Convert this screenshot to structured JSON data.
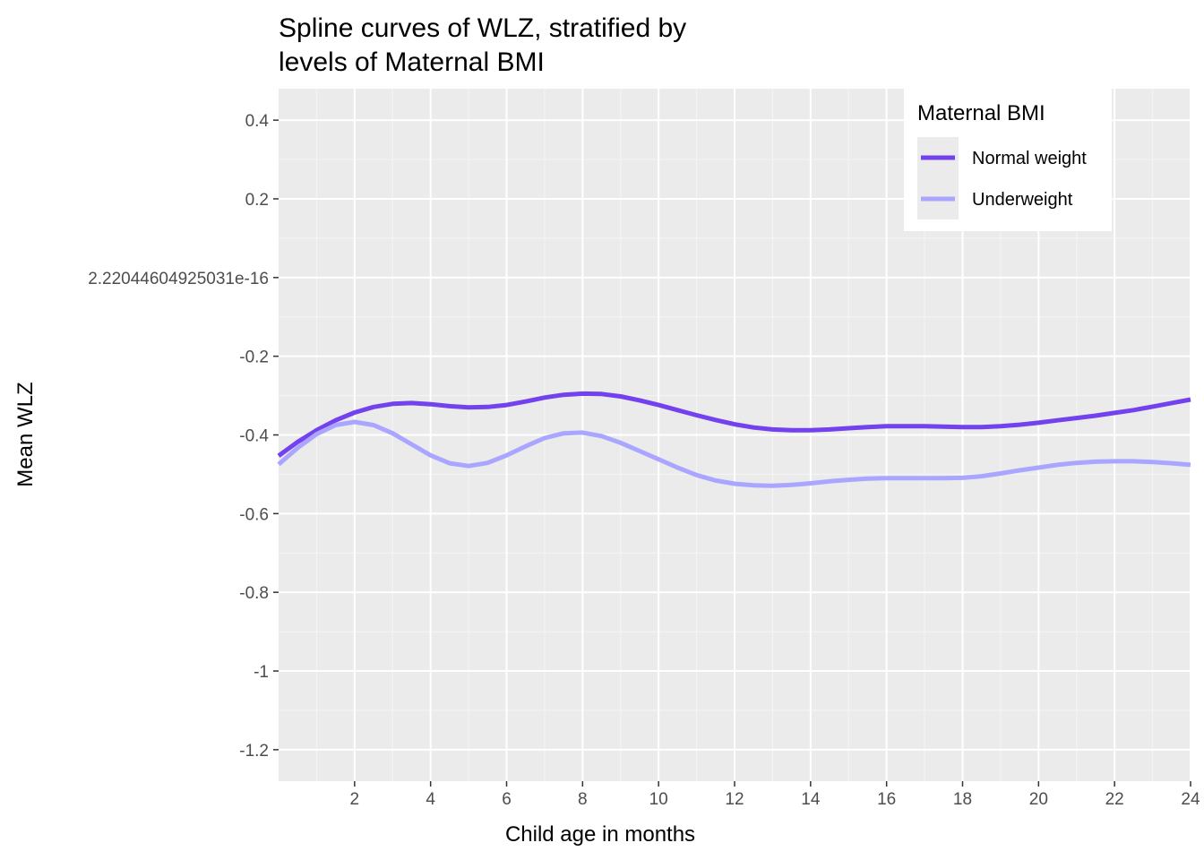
{
  "chart_data": {
    "type": "line",
    "title_lines": [
      "Spline curves of WLZ, stratified by",
      "levels of Maternal BMI"
    ],
    "xlabel": "Child age in months",
    "ylabel": "Mean WLZ",
    "xlim": [
      0,
      24
    ],
    "ylim": [
      -1.28,
      0.48
    ],
    "x_ticks": [
      2,
      4,
      6,
      8,
      10,
      12,
      14,
      16,
      18,
      20,
      22,
      24
    ],
    "x_tick_labels": [
      "2",
      "4",
      "6",
      "8",
      "10",
      "12",
      "14",
      "16",
      "18",
      "20",
      "22",
      "24"
    ],
    "y_ticks": [
      0.4,
      0.2,
      0,
      -0.2,
      -0.4,
      -0.6,
      -0.8,
      -1,
      -1.2
    ],
    "y_tick_labels": [
      "0.4",
      "0.2",
      "2.22044604925031e-16",
      "-0.2",
      "-0.4",
      "-0.6",
      "-0.8",
      "-1",
      "-1.2"
    ],
    "grid": true,
    "legend": {
      "title": "Maternal BMI",
      "position": "top-right"
    },
    "series": [
      {
        "name": "Normal weight",
        "color": "#7342ee",
        "x": [
          0,
          0.5,
          1,
          1.5,
          2,
          2.5,
          3,
          3.5,
          4,
          4.5,
          5,
          5.5,
          6,
          6.5,
          7,
          7.5,
          8,
          8.5,
          9,
          9.5,
          10,
          10.5,
          11,
          11.5,
          12,
          12.5,
          13,
          13.5,
          14,
          14.5,
          15,
          15.5,
          16,
          16.5,
          17,
          17.5,
          18,
          18.5,
          19,
          19.5,
          20,
          20.5,
          21,
          21.5,
          22,
          22.5,
          23,
          23.5,
          24
        ],
        "values": [
          -0.453,
          -0.418,
          -0.388,
          -0.363,
          -0.343,
          -0.329,
          -0.321,
          -0.319,
          -0.322,
          -0.327,
          -0.33,
          -0.329,
          -0.324,
          -0.315,
          -0.305,
          -0.298,
          -0.295,
          -0.296,
          -0.302,
          -0.312,
          -0.324,
          -0.337,
          -0.35,
          -0.362,
          -0.373,
          -0.381,
          -0.386,
          -0.388,
          -0.388,
          -0.386,
          -0.383,
          -0.38,
          -0.378,
          -0.378,
          -0.378,
          -0.379,
          -0.38,
          -0.38,
          -0.378,
          -0.374,
          -0.369,
          -0.363,
          -0.357,
          -0.351,
          -0.344,
          -0.337,
          -0.328,
          -0.319,
          -0.31
        ]
      },
      {
        "name": "Underweight",
        "color": "#aaa6ff",
        "x": [
          0,
          0.5,
          1,
          1.5,
          2,
          2.5,
          3,
          3.5,
          4,
          4.5,
          5,
          5.5,
          6,
          6.5,
          7,
          7.5,
          8,
          8.5,
          9,
          9.5,
          10,
          10.5,
          11,
          11.5,
          12,
          12.5,
          13,
          13.5,
          14,
          14.5,
          15,
          15.5,
          16,
          16.5,
          17,
          17.5,
          18,
          18.5,
          19,
          19.5,
          20,
          20.5,
          21,
          21.5,
          22,
          22.5,
          23,
          23.5,
          24
        ],
        "values": [
          -0.475,
          -0.433,
          -0.398,
          -0.375,
          -0.367,
          -0.375,
          -0.396,
          -0.424,
          -0.452,
          -0.472,
          -0.479,
          -0.471,
          -0.452,
          -0.429,
          -0.408,
          -0.396,
          -0.394,
          -0.403,
          -0.42,
          -0.441,
          -0.462,
          -0.483,
          -0.502,
          -0.516,
          -0.524,
          -0.528,
          -0.529,
          -0.527,
          -0.523,
          -0.518,
          -0.514,
          -0.511,
          -0.51,
          -0.51,
          -0.51,
          -0.51,
          -0.509,
          -0.505,
          -0.498,
          -0.49,
          -0.483,
          -0.476,
          -0.471,
          -0.468,
          -0.467,
          -0.467,
          -0.469,
          -0.472,
          -0.476
        ]
      }
    ]
  }
}
